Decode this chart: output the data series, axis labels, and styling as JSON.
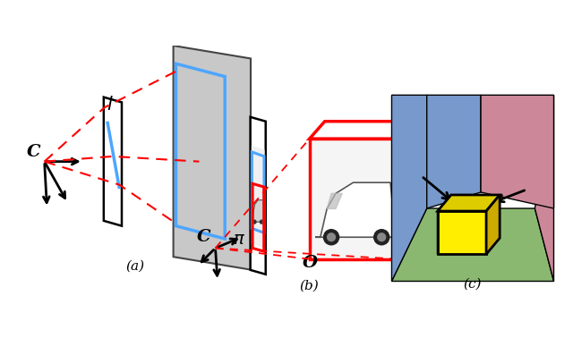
{
  "bg_color": "#ffffff",
  "title_a": "(a)",
  "title_b": "(b)",
  "title_c": "(c)",
  "red_color": "#ff0000",
  "blue_color": "#4da6ff",
  "gray_plane": "#c8c8c8",
  "gray_plane_edge": "#444444",
  "green_floor": "#8ab870",
  "pink_wall": "#cc8899",
  "blue_wall": "#7799cc",
  "yellow_box": "#ffee00",
  "yellow_top": "#ddcc00",
  "yellow_right": "#ccaa00",
  "black": "#000000",
  "white": "#ffffff",
  "light_gray": "#e8e8e8"
}
